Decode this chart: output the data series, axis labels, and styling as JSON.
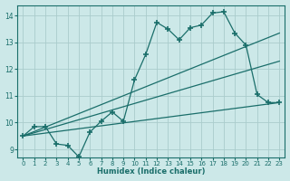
{
  "xlabel": "Humidex (Indice chaleur)",
  "bg_color": "#cce8e8",
  "grid_color": "#aacccc",
  "line_color": "#1a6e6a",
  "xlim": [
    -0.5,
    23.5
  ],
  "ylim": [
    8.7,
    14.4
  ],
  "xticks": [
    0,
    1,
    2,
    3,
    4,
    5,
    6,
    7,
    8,
    9,
    10,
    11,
    12,
    13,
    14,
    15,
    16,
    17,
    18,
    19,
    20,
    21,
    22,
    23
  ],
  "yticks": [
    9,
    10,
    11,
    12,
    13,
    14
  ],
  "main_x": [
    0,
    1,
    2,
    3,
    4,
    5,
    6,
    7,
    8,
    9,
    10,
    11,
    12,
    13,
    14,
    15,
    16,
    17,
    18,
    19,
    20,
    21,
    22,
    23
  ],
  "main_y": [
    9.5,
    9.85,
    9.85,
    9.2,
    9.15,
    8.72,
    9.65,
    10.05,
    10.4,
    10.05,
    11.6,
    12.55,
    13.75,
    13.5,
    13.1,
    13.55,
    13.65,
    14.1,
    14.15,
    13.35,
    12.9,
    11.05,
    10.75,
    10.75
  ],
  "line1_x": [
    0,
    23
  ],
  "line1_y": [
    9.5,
    13.35
  ],
  "line2_x": [
    0,
    23
  ],
  "line2_y": [
    9.5,
    12.3
  ],
  "line3_x": [
    0,
    23
  ],
  "line3_y": [
    9.5,
    10.75
  ]
}
